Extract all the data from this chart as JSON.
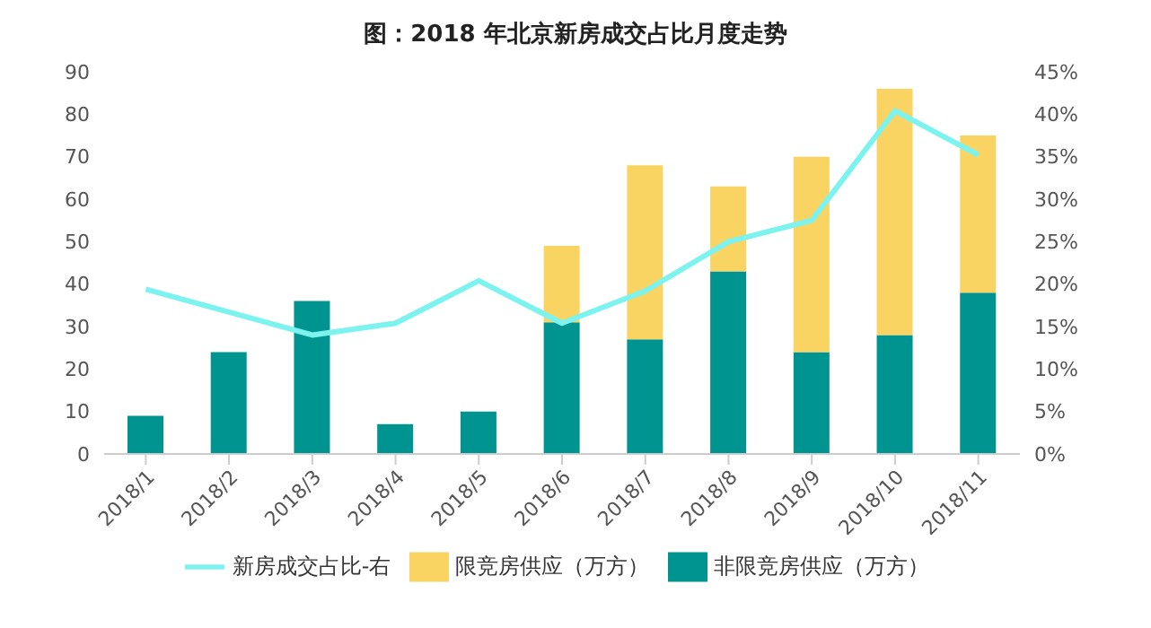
{
  "chart_data": {
    "type": "bar",
    "title": "图：2018 年北京新房成交占比月度走势",
    "categories": [
      "2018/1",
      "2018/2",
      "2018/3",
      "2018/4",
      "2018/5",
      "2018/6",
      "2018/7",
      "2018/8",
      "2018/9",
      "2018/10",
      "2018/11"
    ],
    "stacked": true,
    "series": [
      {
        "name": "非限竞房供应（万方）",
        "color": "#009490",
        "values": [
          9,
          24,
          36,
          7,
          10,
          31,
          27,
          43,
          24,
          28,
          38
        ]
      },
      {
        "name": "限竞房供应（万方）",
        "color": "#f9d463",
        "values": [
          null,
          null,
          null,
          null,
          null,
          18,
          41,
          20,
          46,
          58,
          37
        ]
      },
      {
        "name": "新房成交占比-右",
        "type": "line",
        "axis": "y2",
        "color": "#7df3f0",
        "values": [
          19.4,
          16.7,
          14,
          15.4,
          20.4,
          15.4,
          19.2,
          25,
          27.5,
          40.4,
          35.2
        ]
      }
    ],
    "ylim": [
      0,
      90
    ],
    "yticks": [
      0,
      10,
      20,
      30,
      40,
      50,
      60,
      70,
      80,
      90
    ],
    "y2lim": [
      0,
      45
    ],
    "y2ticks": [
      {
        "value": 0,
        "label": "0%"
      },
      {
        "value": 5,
        "label": "5%"
      },
      {
        "value": 10,
        "label": "10%"
      },
      {
        "value": 15,
        "label": "15%"
      },
      {
        "value": 20,
        "label": "20%"
      },
      {
        "value": 25,
        "label": "25%"
      },
      {
        "value": 30,
        "label": "30%"
      },
      {
        "value": 35,
        "label": "35%"
      },
      {
        "value": 40,
        "label": "40%"
      },
      {
        "value": 45,
        "label": "45%"
      }
    ],
    "grid": false,
    "legend": "bottom",
    "marker": "none"
  }
}
